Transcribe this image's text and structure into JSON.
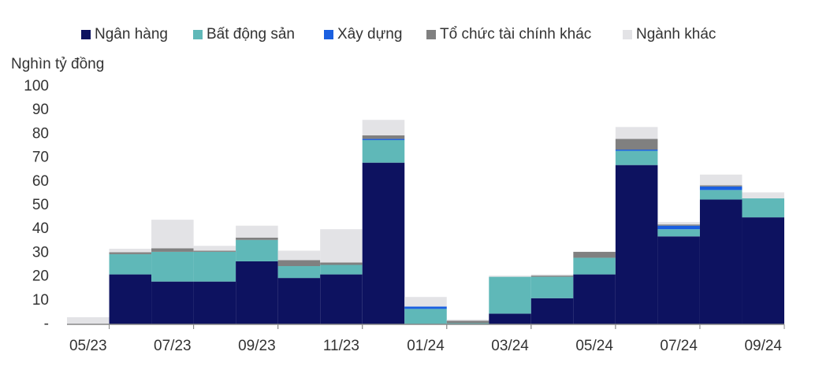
{
  "chart_data": {
    "type": "stacked_bar",
    "y_label": "Nghìn tỷ đồng",
    "categories": [
      "05/23",
      null,
      "07/23",
      null,
      "09/23",
      null,
      "11/23",
      null,
      "01/24",
      null,
      "03/24",
      null,
      "05/24",
      null,
      "07/24",
      null,
      "09/24"
    ],
    "series": [
      {
        "name": "Ngân hàng",
        "color": "#0d1260",
        "values": [
          0,
          21,
          18,
          18,
          26.5,
          19.5,
          21,
          68,
          0,
          0,
          4.5,
          11,
          21,
          67,
          37,
          52.5,
          45
        ]
      },
      {
        "name": "Bất động sản",
        "color": "#5fb8b8",
        "values": [
          0,
          8.5,
          12.5,
          12.5,
          9,
          5,
          4,
          9.5,
          6.5,
          0.5,
          15.5,
          9,
          7,
          6,
          3,
          4,
          8
        ]
      },
      {
        "name": "Xây dựng",
        "color": "#1a5fe0",
        "values": [
          0,
          0,
          0,
          0,
          0,
          0,
          0,
          0.5,
          1,
          0,
          0,
          0,
          0,
          0.5,
          1.5,
          1.5,
          0
        ]
      },
      {
        "name": "Tổ chức tài chính khác",
        "color": "#808080",
        "values": [
          0,
          0.8,
          1.5,
          0.5,
          1,
          2.5,
          1,
          1.5,
          0,
          1,
          0,
          0.5,
          2.5,
          4.5,
          0.5,
          0.5,
          0
        ]
      },
      {
        "name": "Ngành khác",
        "color": "#e3e3e6",
        "values": [
          3,
          1.5,
          12,
          2,
          5,
          4,
          14,
          6.5,
          4,
          0.5,
          0.5,
          0.5,
          0,
          5,
          1,
          4.5,
          2.5
        ]
      }
    ],
    "ylim": [
      0,
      100
    ],
    "yticks": [
      {
        "value": 0,
        "label": "-"
      },
      10,
      20,
      30,
      40,
      50,
      60,
      70,
      80,
      90,
      100
    ]
  }
}
